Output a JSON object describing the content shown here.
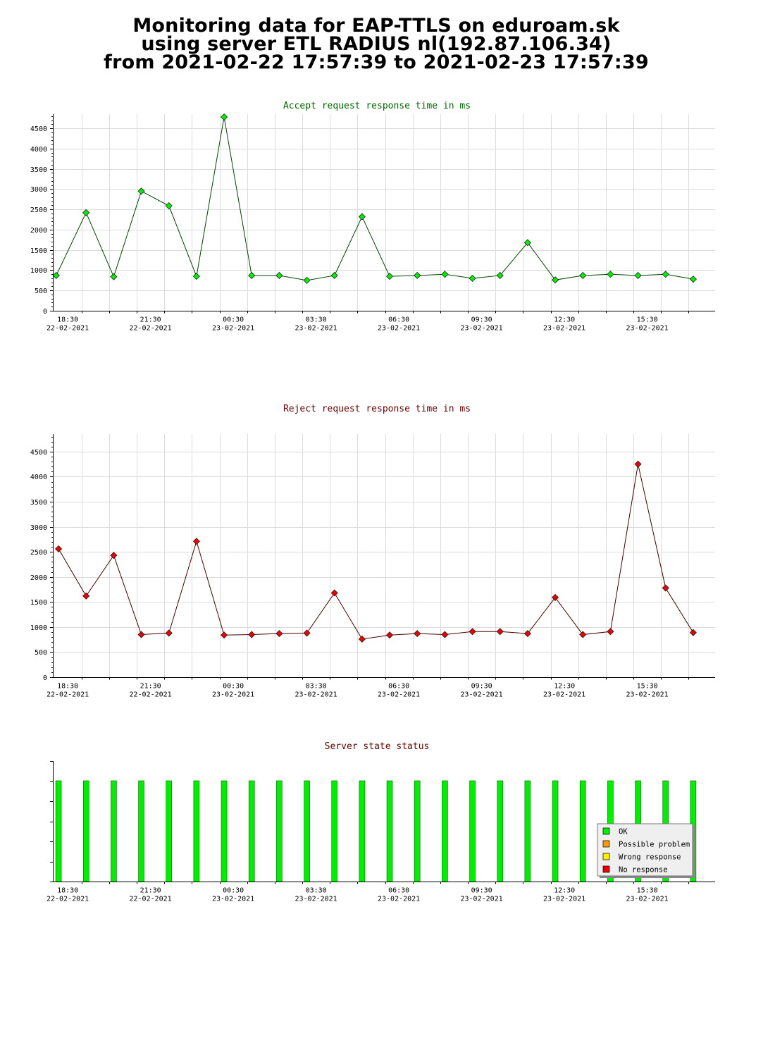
{
  "header": {
    "line1": "Monitoring data for EAP-TTLS on eduroam.sk",
    "line2": "using server ETL RADIUS nl(192.87.106.34)",
    "line3": "from 2021-02-22 17:57:39 to 2021-02-23 17:57:39"
  },
  "time_ticks": [
    {
      "time": "18:30",
      "date": "22-02-2021"
    },
    {
      "time": "21:30",
      "date": "22-02-2021"
    },
    {
      "time": "00:30",
      "date": "23-02-2021"
    },
    {
      "time": "03:30",
      "date": "23-02-2021"
    },
    {
      "time": "06:30",
      "date": "23-02-2021"
    },
    {
      "time": "09:30",
      "date": "23-02-2021"
    },
    {
      "time": "12:30",
      "date": "23-02-2021"
    },
    {
      "time": "15:30",
      "date": "23-02-2021"
    }
  ],
  "chart_data": [
    {
      "type": "line",
      "title": "Accept request response time in ms",
      "title_color": "#006600",
      "line_color": "#004400",
      "marker_color": "#00ee00",
      "ylim": [
        0,
        4850
      ],
      "yticks": [
        0,
        500,
        1000,
        1500,
        2000,
        2500,
        3000,
        3500,
        4000,
        4500
      ],
      "x": [
        "2021-02-22 18:05",
        "2021-02-22 19:10",
        "2021-02-22 20:10",
        "2021-02-22 21:10",
        "2021-02-22 22:10",
        "2021-02-22 23:10",
        "2021-02-23 00:10",
        "2021-02-23 01:10",
        "2021-02-23 02:10",
        "2021-02-23 03:10",
        "2021-02-23 04:10",
        "2021-02-23 05:10",
        "2021-02-23 06:10",
        "2021-02-23 07:10",
        "2021-02-23 08:10",
        "2021-02-23 09:10",
        "2021-02-23 10:10",
        "2021-02-23 11:10",
        "2021-02-23 12:10",
        "2021-02-23 13:10",
        "2021-02-23 14:10",
        "2021-02-23 15:10",
        "2021-02-23 16:10",
        "2021-02-23 17:10"
      ],
      "values": [
        870,
        2420,
        840,
        2950,
        2590,
        850,
        4780,
        870,
        870,
        750,
        870,
        2320,
        850,
        870,
        900,
        800,
        870,
        1680,
        760,
        870,
        900,
        870,
        900,
        780
      ],
      "grid": true
    },
    {
      "type": "line",
      "title": "Reject request response time in ms",
      "title_color": "#660000",
      "line_color": "#440000",
      "marker_color": "#ee0000",
      "ylim": [
        0,
        4850
      ],
      "yticks": [
        0,
        500,
        1000,
        1500,
        2000,
        2500,
        3000,
        3500,
        4000,
        4500
      ],
      "x": [
        "2021-02-22 18:10",
        "2021-02-22 19:10",
        "2021-02-22 20:10",
        "2021-02-22 21:10",
        "2021-02-22 22:10",
        "2021-02-22 23:10",
        "2021-02-23 00:10",
        "2021-02-23 01:10",
        "2021-02-23 02:10",
        "2021-02-23 03:10",
        "2021-02-23 04:10",
        "2021-02-23 05:10",
        "2021-02-23 06:10",
        "2021-02-23 07:10",
        "2021-02-23 08:10",
        "2021-02-23 09:10",
        "2021-02-23 10:10",
        "2021-02-23 11:10",
        "2021-02-23 12:10",
        "2021-02-23 13:10",
        "2021-02-23 14:10",
        "2021-02-23 15:10",
        "2021-02-23 16:10",
        "2021-02-23 17:10"
      ],
      "values": [
        2560,
        1620,
        2430,
        850,
        880,
        2710,
        840,
        850,
        870,
        880,
        1680,
        760,
        840,
        870,
        850,
        910,
        910,
        870,
        1590,
        850,
        910,
        4250,
        1780,
        890
      ],
      "grid": true
    },
    {
      "type": "bar",
      "title": "Server state status",
      "title_color": "#660000",
      "x": [
        "2021-02-22 18:10",
        "2021-02-22 19:10",
        "2021-02-22 20:10",
        "2021-02-22 21:10",
        "2021-02-22 22:10",
        "2021-02-22 23:10",
        "2021-02-23 00:10",
        "2021-02-23 01:10",
        "2021-02-23 02:10",
        "2021-02-23 03:10",
        "2021-02-23 04:10",
        "2021-02-23 05:10",
        "2021-02-23 06:10",
        "2021-02-23 07:10",
        "2021-02-23 08:10",
        "2021-02-23 09:10",
        "2021-02-23 10:10",
        "2021-02-23 11:10",
        "2021-02-23 12:10",
        "2021-02-23 13:10",
        "2021-02-23 14:10",
        "2021-02-23 15:10",
        "2021-02-23 16:10",
        "2021-02-23 17:10"
      ],
      "states": [
        "OK",
        "OK",
        "OK",
        "OK",
        "OK",
        "OK",
        "OK",
        "OK",
        "OK",
        "OK",
        "OK",
        "OK",
        "OK",
        "OK",
        "OK",
        "OK",
        "OK",
        "OK",
        "OK",
        "OK",
        "OK",
        "OK",
        "OK",
        "OK"
      ],
      "legend": [
        {
          "label": "OK",
          "color": "#00ee00"
        },
        {
          "label": "Possible problem",
          "color": "#ff9900"
        },
        {
          "label": "Wrong response",
          "color": "#ffee00"
        },
        {
          "label": "No response",
          "color": "#ee0000"
        }
      ],
      "legend_position": "bottom-right",
      "grid": false
    }
  ]
}
